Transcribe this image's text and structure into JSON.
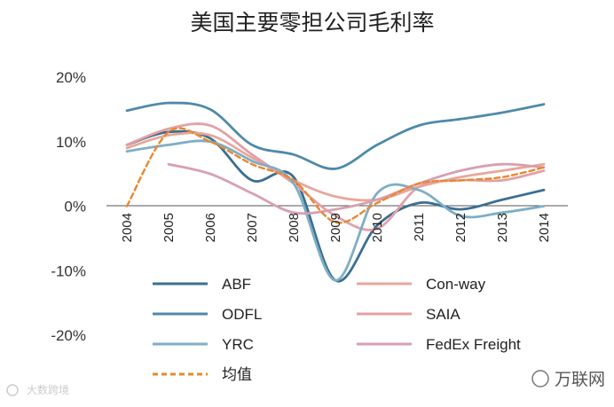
{
  "chart_data": {
    "type": "line",
    "title": "美国主要零担公司毛利率",
    "xlabel": "",
    "ylabel": "",
    "x": [
      "2004",
      "2005",
      "2006",
      "2007",
      "2008",
      "2009",
      "2010",
      "2011",
      "2012",
      "2013",
      "2014"
    ],
    "ylim": [
      -20,
      20
    ],
    "yticks": [
      20,
      10,
      0,
      -10,
      -20
    ],
    "ytick_labels": [
      "20%",
      "10%",
      "0%",
      "-10%",
      "-20%"
    ],
    "legend_position": "bottom-center",
    "series": [
      {
        "name": "ABF",
        "color": "#3b6f92",
        "dash": false,
        "values": [
          9.5,
          11.5,
          10.5,
          4.0,
          4.5,
          -11.5,
          -3.0,
          0.5,
          -0.5,
          1.0,
          2.5
        ]
      },
      {
        "name": "Con-way",
        "color": "#e8a79a",
        "dash": false,
        "values": [
          9.0,
          11.0,
          11.0,
          7.5,
          4.0,
          1.5,
          1.0,
          3.0,
          4.5,
          5.5,
          6.5
        ]
      },
      {
        "name": "ODFL",
        "color": "#4f8aaa",
        "dash": false,
        "values": [
          14.8,
          16.0,
          15.0,
          9.5,
          8.0,
          5.8,
          9.5,
          12.5,
          13.5,
          14.5,
          15.8
        ]
      },
      {
        "name": "SAIA",
        "color": "#e4a0a6",
        "dash": false,
        "values": [
          9.5,
          12.0,
          12.5,
          8.0,
          3.5,
          -1.5,
          -3.5,
          3.0,
          4.0,
          4.0,
          5.5
        ]
      },
      {
        "name": "YRC",
        "color": "#7eaec6",
        "dash": false,
        "values": [
          8.5,
          9.5,
          10.0,
          7.0,
          3.5,
          -11.5,
          2.0,
          2.5,
          -1.5,
          -1.0,
          0.0
        ]
      },
      {
        "name": "FedEx Freight",
        "color": "#d7a0b0",
        "dash": false,
        "values": [
          null,
          6.5,
          5.0,
          2.0,
          -1.0,
          -0.5,
          1.0,
          3.5,
          5.5,
          6.5,
          6.0
        ]
      },
      {
        "name": "均值",
        "color": "#e8882d",
        "dash": true,
        "values": [
          0.0,
          11.5,
          10.0,
          6.5,
          4.0,
          -2.5,
          0.5,
          3.5,
          4.0,
          4.5,
          6.0
        ]
      }
    ]
  },
  "watermark": {
    "left": "大数跨境",
    "right": "万联网"
  }
}
